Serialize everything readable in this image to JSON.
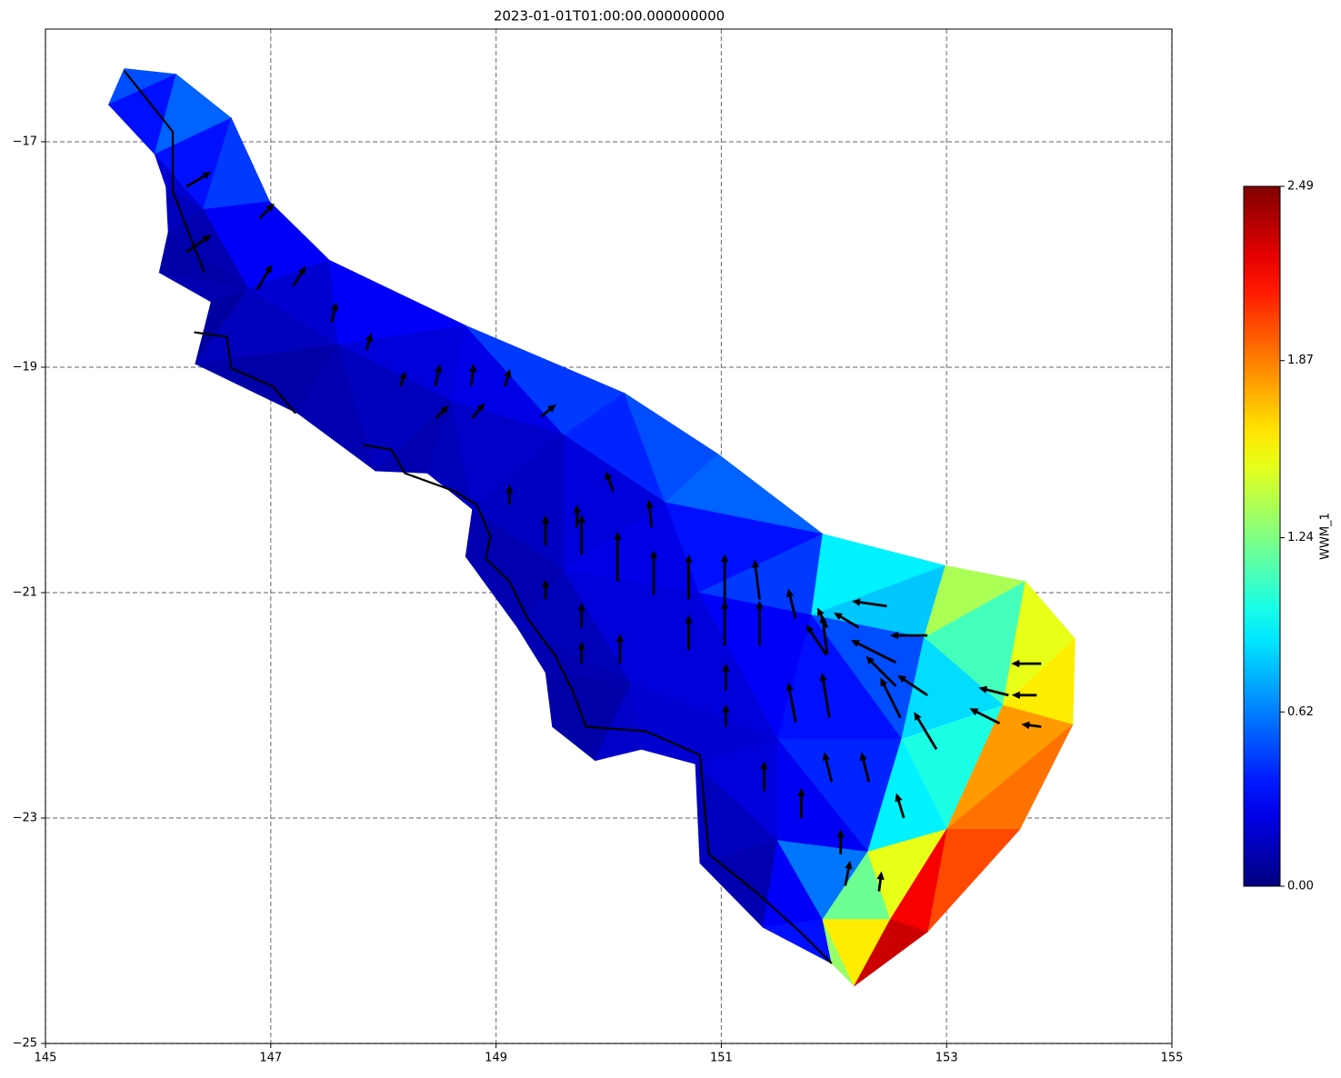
{
  "chart_data": {
    "type": "tripcolor",
    "title": "2023-01-01T01:00:00.000000000",
    "xlim": [
      145,
      155
    ],
    "ylim": [
      -25,
      -16
    ],
    "xticks": [
      145,
      147,
      149,
      151,
      153,
      155
    ],
    "yticks": [
      {
        "value": -25,
        "label": "−25"
      },
      {
        "value": -23,
        "label": "−23"
      },
      {
        "value": -21,
        "label": "−21"
      },
      {
        "value": -19,
        "label": "−19"
      },
      {
        "value": -17,
        "label": "−17"
      }
    ],
    "grid": true,
    "mesh": {
      "lon": [
        145.56,
        145.97,
        146.07,
        146.09,
        146.01,
        146.47,
        146.33,
        147.24,
        147.93,
        148.39,
        148.79,
        148.73,
        149.19,
        149.44,
        149.5,
        149.88,
        150.29,
        150.77,
        150.81,
        151.37,
        151.98,
        152.18,
        145.7,
        146.16,
        146.65,
        146.99,
        147.52,
        148.73,
        150.14,
        150.97,
        151.9,
        152.99,
        153.7,
        154.14,
        154.12,
        153.65,
        152.83,
        146.4,
        146.8,
        147.6,
        148.6,
        149.6,
        150.5,
        149.6,
        150.8,
        151.8,
        152.8,
        150.2,
        151.5,
        152.6,
        153.5,
        151.5,
        152.3,
        153.0,
        151.9,
        152.5
      ],
      "lat": [
        -16.67,
        -17.11,
        -17.4,
        -17.8,
        -18.16,
        -18.42,
        -18.97,
        -19.41,
        -19.92,
        -19.94,
        -20.26,
        -20.68,
        -21.31,
        -21.71,
        -22.19,
        -22.49,
        -22.39,
        -22.52,
        -23.4,
        -23.97,
        -24.29,
        -24.49,
        -16.35,
        -16.4,
        -16.79,
        -17.53,
        -18.05,
        -18.63,
        -19.23,
        -19.77,
        -20.48,
        -20.76,
        -20.9,
        -21.41,
        -22.17,
        -23.1,
        -24.01,
        -17.6,
        -18.3,
        -18.8,
        -19.3,
        -19.6,
        -20.2,
        -20.8,
        -21.0,
        -21.2,
        -21.4,
        -21.8,
        -22.3,
        -22.3,
        -22.0,
        -23.2,
        -23.3,
        -23.1,
        -23.9,
        -23.9
      ],
      "triangles": [
        [
          0,
          22,
          23
        ],
        [
          0,
          23,
          1
        ],
        [
          1,
          23,
          24
        ],
        [
          1,
          24,
          37
        ],
        [
          1,
          37,
          2
        ],
        [
          2,
          37,
          3
        ],
        [
          37,
          24,
          25
        ],
        [
          37,
          25,
          38
        ],
        [
          3,
          37,
          38
        ],
        [
          3,
          38,
          4
        ],
        [
          4,
          38,
          5
        ],
        [
          5,
          38,
          6
        ],
        [
          6,
          38,
          39
        ],
        [
          38,
          25,
          26
        ],
        [
          38,
          26,
          39
        ],
        [
          6,
          39,
          7
        ],
        [
          7,
          39,
          8
        ],
        [
          39,
          26,
          27
        ],
        [
          39,
          27,
          40
        ],
        [
          8,
          39,
          40
        ],
        [
          8,
          40,
          9
        ],
        [
          9,
          40,
          10
        ],
        [
          40,
          27,
          41
        ],
        [
          27,
          28,
          41
        ],
        [
          10,
          40,
          41
        ],
        [
          10,
          41,
          43
        ],
        [
          10,
          43,
          11
        ],
        [
          11,
          43,
          12
        ],
        [
          41,
          28,
          42
        ],
        [
          28,
          29,
          42
        ],
        [
          41,
          42,
          43
        ],
        [
          42,
          29,
          30
        ],
        [
          42,
          30,
          44
        ],
        [
          43,
          42,
          44
        ],
        [
          12,
          43,
          47
        ],
        [
          43,
          44,
          47
        ],
        [
          12,
          47,
          13
        ],
        [
          13,
          47,
          14
        ],
        [
          14,
          47,
          15
        ],
        [
          15,
          47,
          16
        ],
        [
          16,
          47,
          17
        ],
        [
          44,
          30,
          45
        ],
        [
          45,
          30,
          31
        ],
        [
          45,
          31,
          46
        ],
        [
          46,
          31,
          32
        ],
        [
          46,
          32,
          50
        ],
        [
          50,
          32,
          33
        ],
        [
          50,
          33,
          34
        ],
        [
          44,
          45,
          48
        ],
        [
          47,
          44,
          48
        ],
        [
          45,
          46,
          49
        ],
        [
          45,
          49,
          48
        ],
        [
          46,
          50,
          49
        ],
        [
          17,
          47,
          48
        ],
        [
          17,
          48,
          51
        ],
        [
          17,
          51,
          18
        ],
        [
          48,
          49,
          52
        ],
        [
          48,
          52,
          51
        ],
        [
          49,
          50,
          53
        ],
        [
          49,
          53,
          52
        ],
        [
          50,
          34,
          53
        ],
        [
          53,
          34,
          35
        ],
        [
          18,
          51,
          19
        ],
        [
          51,
          54,
          19
        ],
        [
          51,
          52,
          54
        ],
        [
          52,
          55,
          54
        ],
        [
          52,
          53,
          55
        ],
        [
          53,
          35,
          36
        ],
        [
          53,
          36,
          55
        ],
        [
          19,
          54,
          20
        ],
        [
          54,
          21,
          20
        ],
        [
          54,
          55,
          21
        ],
        [
          55,
          36,
          21
        ]
      ],
      "values": [
        0.5,
        0.35,
        0.55,
        0.35,
        0.2,
        0.15,
        0.45,
        0.3,
        0.12,
        0.1,
        0.12,
        0.08,
        0.15,
        0.3,
        0.2,
        0.1,
        0.12,
        0.3,
        0.22,
        0.15,
        0.12,
        0.14,
        0.25,
        0.45,
        0.18,
        0.16,
        0.12,
        0.12,
        0.4,
        0.5,
        0.22,
        0.55,
        0.35,
        0.25,
        0.14,
        0.22,
        0.12,
        0.1,
        0.1,
        0.18,
        0.2,
        0.45,
        0.9,
        0.8,
        1.35,
        1.1,
        1.5,
        1.6,
        0.3,
        0.22,
        0.5,
        0.35,
        0.85,
        0.2,
        0.22,
        0.15,
        0.4,
        0.28,
        1.0,
        0.9,
        1.8,
        1.9,
        0.12,
        0.3,
        0.6,
        1.2,
        1.5,
        2.0,
        2.2,
        0.35,
        1.3,
        1.6,
        2.3
      ]
    },
    "coastline": {
      "color": "#000000",
      "lon": [
        145.7,
        146.13,
        146.13,
        146.41,
        null,
        146.32,
        146.61,
        146.65,
        147.02,
        147.22,
        null,
        147.82,
        148.07,
        148.19,
        148.63,
        148.83,
        148.95,
        148.91,
        149.12,
        149.28,
        149.52,
        149.68,
        149.8,
        150.33,
        150.81,
        150.89,
        151.3,
        151.7,
        151.98
      ],
      "lat": [
        -16.37,
        -16.91,
        -17.44,
        -18.16,
        null,
        -18.69,
        -18.73,
        -19.01,
        -19.17,
        -19.41,
        null,
        -19.69,
        -19.73,
        -19.94,
        -20.1,
        -20.22,
        -20.5,
        -20.7,
        -20.9,
        -21.23,
        -21.55,
        -21.87,
        -22.19,
        -22.23,
        -22.44,
        -23.32,
        -23.65,
        -24.01,
        -24.29
      ]
    },
    "quiver": {
      "color": "#000000",
      "lon": [
        153.84,
        153.8,
        153.55,
        153.47,
        153.84,
        152.83,
        152.47,
        152.83,
        152.55,
        152.55,
        152.59,
        152.91,
        151.93,
        152.22,
        151.94,
        151.94,
        151.66,
        151.34,
        151.34,
        151.03,
        151.03,
        150.71,
        150.71,
        150.4,
        150.08,
        149.76,
        149.44,
        149.76,
        149.44,
        150.1,
        150.38,
        150.04,
        149.72,
        149.12,
        151.66,
        151.96,
        151.98,
        152.31,
        151.38,
        151.71,
        152.06,
        152.62,
        152.1,
        152.4,
        151.04,
        151.04,
        149.76,
        146.88,
        147.2,
        147.54,
        147.85,
        148.15,
        148.46,
        148.78,
        146.25,
        146.25,
        146.9,
        148.47,
        148.79,
        149.4,
        149.08
      ],
      "lat": [
        -21.63,
        -21.91,
        -21.91,
        -22.16,
        -22.19,
        -21.38,
        -21.12,
        -21.91,
        -21.62,
        -21.83,
        -22.11,
        -22.39,
        -21.55,
        -21.31,
        -21.31,
        -21.55,
        -21.23,
        -21.06,
        -21.47,
        -21.1,
        -21.47,
        -21.06,
        -21.51,
        -21.02,
        -20.9,
        -20.66,
        -20.58,
        -21.31,
        -21.06,
        -21.63,
        -20.42,
        -20.1,
        -20.42,
        -20.22,
        -22.15,
        -22.11,
        -22.68,
        -22.68,
        -22.76,
        -23.0,
        -23.32,
        -23.0,
        -23.6,
        -23.65,
        -21.87,
        -22.19,
        -21.63,
        -18.31,
        -18.28,
        -18.6,
        -18.85,
        -19.17,
        -19.17,
        -19.17,
        -17.4,
        -17.98,
        -17.68,
        -19.45,
        -19.45,
        -19.44,
        -19.17
      ],
      "u": [
        -0.6,
        -0.5,
        -0.6,
        -0.6,
        -0.4,
        -0.75,
        -0.7,
        -0.6,
        -0.9,
        -0.6,
        -0.4,
        -0.45,
        -0.4,
        -0.5,
        -0.2,
        -0.1,
        -0.15,
        -0.1,
        0,
        0,
        0,
        0,
        0,
        0,
        0,
        0,
        0,
        0,
        0,
        0,
        -0.05,
        -0.15,
        0,
        0,
        -0.15,
        -0.15,
        -0.15,
        -0.15,
        0,
        0,
        0,
        -0.15,
        0.1,
        0.05,
        0,
        0,
        0,
        0.3,
        0.25,
        0.1,
        0.1,
        0.1,
        0.1,
        0.05,
        0.5,
        0.5,
        0.3,
        0.25,
        0.25,
        0.3,
        0.1
      ],
      "v": [
        0,
        0,
        0.15,
        0.3,
        0.05,
        0,
        0.1,
        0.4,
        0.45,
        0.6,
        0.8,
        0.75,
        0.6,
        0.3,
        0.4,
        0.8,
        0.6,
        0.8,
        0.9,
        1.0,
        0.9,
        0.9,
        0.7,
        0.9,
        1.0,
        0.8,
        0.6,
        0.5,
        0.4,
        0.6,
        0.55,
        0.4,
        0.45,
        0.4,
        0.8,
        0.9,
        0.6,
        0.6,
        0.6,
        0.6,
        0.5,
        0.5,
        0.5,
        0.4,
        0.55,
        0.45,
        0.45,
        0.5,
        0.4,
        0.4,
        0.35,
        0.3,
        0.45,
        0.45,
        0.3,
        0.35,
        0.3,
        0.25,
        0.3,
        0.25,
        0.35
      ]
    },
    "colorbar": {
      "label": "WWM_1",
      "cmap": "jet",
      "clim": [
        0,
        2.49
      ],
      "ticks": [
        {
          "value": 0,
          "label": "0.00"
        },
        0.62,
        1.24,
        1.87,
        2.49
      ]
    }
  }
}
